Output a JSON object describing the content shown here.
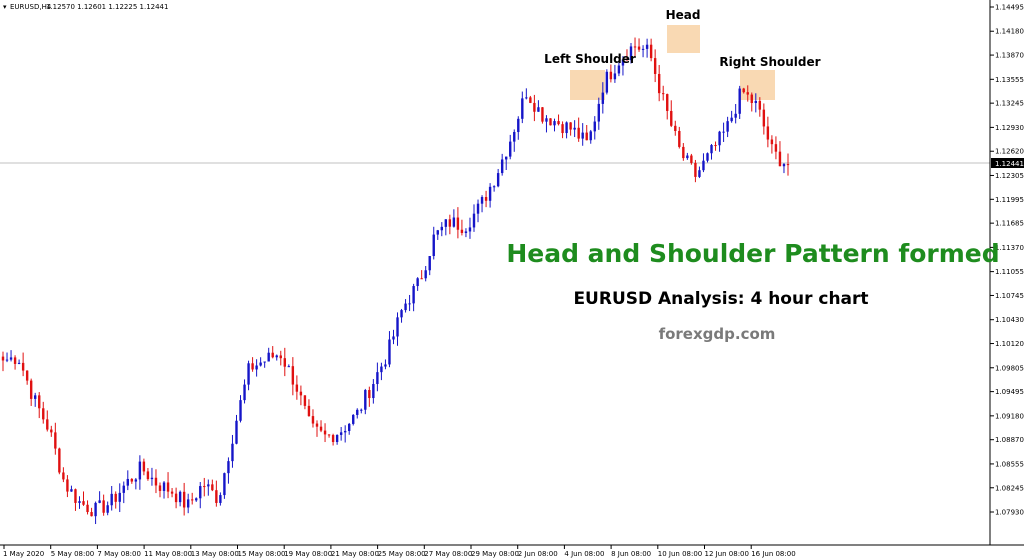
{
  "symbol_info": {
    "label": "EURUSD,H4",
    "ohlc": "1.12570 1.12601 1.12225 1.12441"
  },
  "current_price": "1.12441",
  "annotations": {
    "left_shoulder": "Left Shoulder",
    "head": "Head",
    "right_shoulder": "Right Shoulder",
    "headline": "Head and Shoulder Pattern formed",
    "subline": "EURUSD Analysis: 4 hour chart",
    "website": "forexgdp.com"
  },
  "colors": {
    "bull": "#1515c8",
    "bear": "#e01010",
    "headline": "#1e8c1e",
    "highlight": "#f8cfa0",
    "price_line": "#c0c0c0"
  },
  "chart_data": {
    "type": "candlestick",
    "title": "EURUSD,H4",
    "y_tick_labels": [
      "1.14495",
      "1.14180",
      "1.13870",
      "1.13555",
      "1.13245",
      "1.12930",
      "1.12620",
      "1.12305",
      "1.11995",
      "1.11685",
      "1.11370",
      "1.11055",
      "1.10745",
      "1.10430",
      "1.10120",
      "1.09805",
      "1.09495",
      "1.09180",
      "1.08870",
      "1.08555",
      "1.08245",
      "1.07930"
    ],
    "x_tick_labels": [
      "1 May 2020",
      "5 May 08:00",
      "7 May 08:00",
      "11 May 08:00",
      "13 May 08:00",
      "15 May 08:00",
      "19 May 08:00",
      "21 May 08:00",
      "25 May 08:00",
      "27 May 08:00",
      "29 May 08:00",
      "2 Jun 08:00",
      "4 Jun 08:00",
      "8 Jun 08:00",
      "10 Jun 08:00",
      "12 Jun 08:00",
      "16 Jun 08:00"
    ],
    "ylim": [
      1.0775,
      1.1465
    ],
    "grid": false,
    "path": [
      1.099,
      1.0995,
      1.094,
      1.09,
      1.083,
      1.0805,
      1.0795,
      1.0805,
      1.083,
      1.085,
      1.083,
      1.082,
      1.08,
      1.083,
      1.081,
      1.09,
      1.098,
      1.099,
      1.1,
      1.096,
      1.09,
      1.089,
      1.09,
      1.092,
      1.096,
      1.1,
      1.106,
      1.109,
      1.115,
      1.117,
      1.1165,
      1.119,
      1.123,
      1.128,
      1.134,
      1.131,
      1.13,
      1.129,
      1.127,
      1.135,
      1.138,
      1.14,
      1.139,
      1.132,
      1.126,
      1.123,
      1.126,
      1.129,
      1.134,
      1.132,
      1.126,
      1.1244
    ]
  }
}
